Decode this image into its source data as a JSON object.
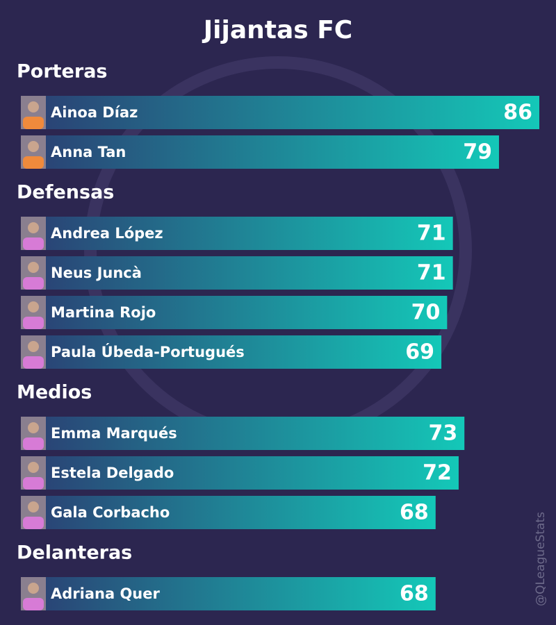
{
  "chart_data": {
    "type": "bar",
    "title": "Jijantas FC",
    "color": "#14c8b8",
    "watermark": "@QLeagueStats",
    "groups": [
      {
        "name": "Porteras",
        "players": [
          {
            "name": "Ainoa Díaz",
            "value": 86
          },
          {
            "name": "Anna Tan",
            "value": 79
          }
        ]
      },
      {
        "name": "Defensas",
        "players": [
          {
            "name": "Andrea López",
            "value": 71
          },
          {
            "name": "Neus Juncà",
            "value": 71
          },
          {
            "name": "Martina Rojo",
            "value": 70
          },
          {
            "name": "Paula Úbeda-Portugués",
            "value": 69
          }
        ]
      },
      {
        "name": "Medios",
        "players": [
          {
            "name": "Emma Marqués",
            "value": 73
          },
          {
            "name": "Estela Delgado",
            "value": 72
          },
          {
            "name": "Gala Corbacho",
            "value": 68
          }
        ]
      },
      {
        "name": "Delanteras",
        "players": [
          {
            "name": "Adriana Quer",
            "value": 68
          }
        ]
      }
    ]
  }
}
